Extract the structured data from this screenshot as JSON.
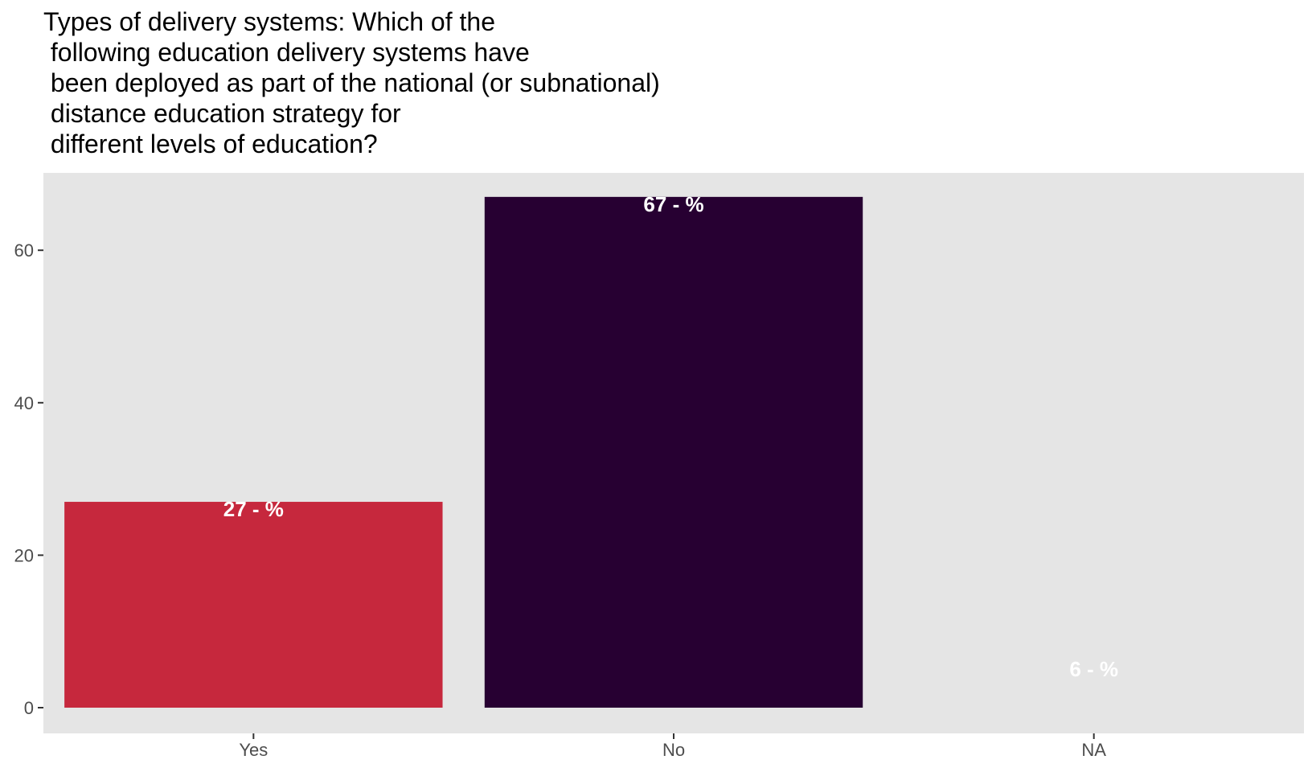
{
  "chart_data": {
    "type": "bar",
    "title": "Types of delivery systems: Which of the\n following education delivery systems have\n been deployed as part of the national (or subnational)\n distance education strategy for\n different levels of education?",
    "xlabel": "",
    "ylabel": "",
    "categories": [
      "Yes",
      "No",
      "NA"
    ],
    "values": [
      27,
      67,
      6
    ],
    "data_labels": [
      "27 - %",
      "67 - %",
      "6 - %"
    ],
    "bar_colors": [
      "#c6283d",
      "#270032",
      "#e5e5e5"
    ],
    "ylim": [
      0,
      70
    ],
    "y_ticks": [
      0,
      20,
      40,
      60
    ],
    "grid": false,
    "panel_background": "#e5e5e5",
    "label_color": "#ffffff",
    "legend": "none"
  }
}
